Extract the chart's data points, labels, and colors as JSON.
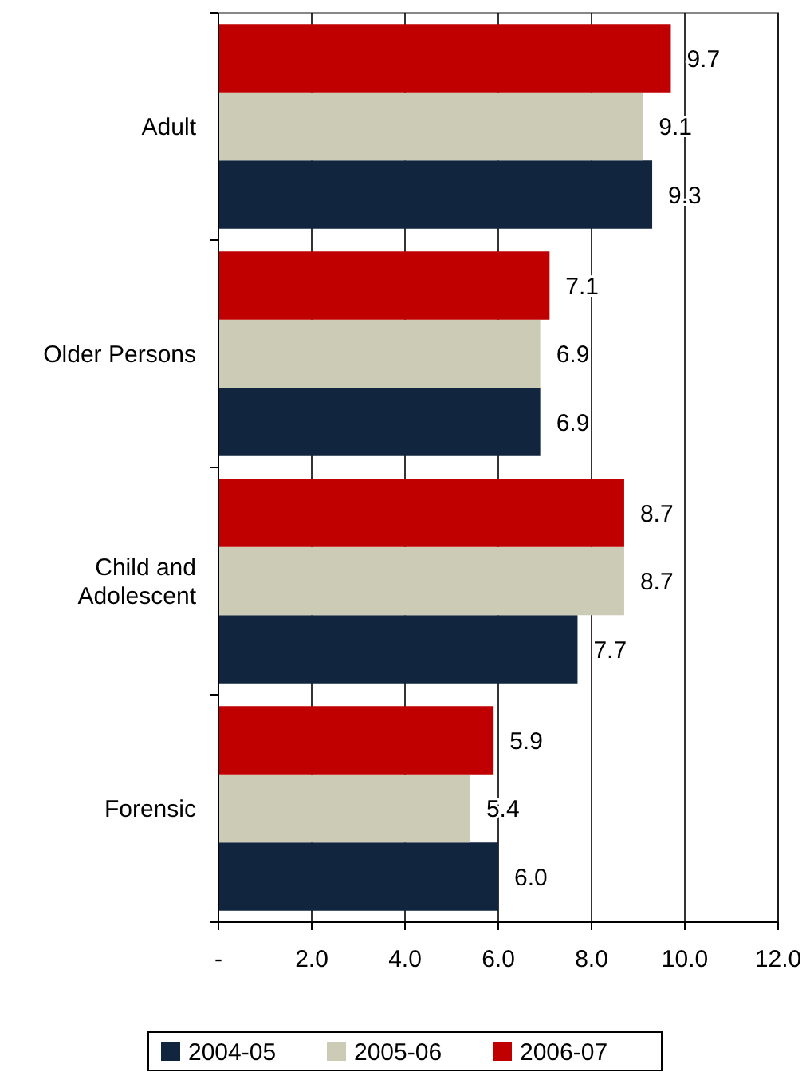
{
  "chart_data": {
    "type": "bar",
    "orientation": "horizontal",
    "categories": [
      "Adult",
      "Older Persons",
      "Child and Adolescent",
      "Forensic"
    ],
    "series": [
      {
        "name": "2004-05",
        "color": "#12253f",
        "values": [
          9.3,
          6.9,
          7.7,
          6.0
        ],
        "value_labels": [
          "9.3",
          "6.9",
          "7.7",
          "6.0"
        ]
      },
      {
        "name": "2005-06",
        "color": "#cccbb5",
        "values": [
          9.1,
          6.9,
          8.7,
          5.4
        ],
        "value_labels": [
          "9.1",
          "6.9",
          "8.7",
          "5.4"
        ]
      },
      {
        "name": "2006-07",
        "color": "#c00000",
        "values": [
          9.7,
          7.1,
          8.7,
          5.9
        ],
        "value_labels": [
          "9.7",
          "7.1",
          "8.7",
          "5.9"
        ]
      }
    ],
    "xlim": [
      0,
      12
    ],
    "xticks": [
      {
        "value": 0,
        "label": "-"
      },
      {
        "value": 2,
        "label": "2.0"
      },
      {
        "value": 4,
        "label": "4.0"
      },
      {
        "value": 6,
        "label": "6.0"
      },
      {
        "value": 8,
        "label": "8.0"
      },
      {
        "value": 10,
        "label": "10.0"
      },
      {
        "value": 12,
        "label": "12.0"
      }
    ],
    "grid": "x",
    "legend": "bottom"
  }
}
